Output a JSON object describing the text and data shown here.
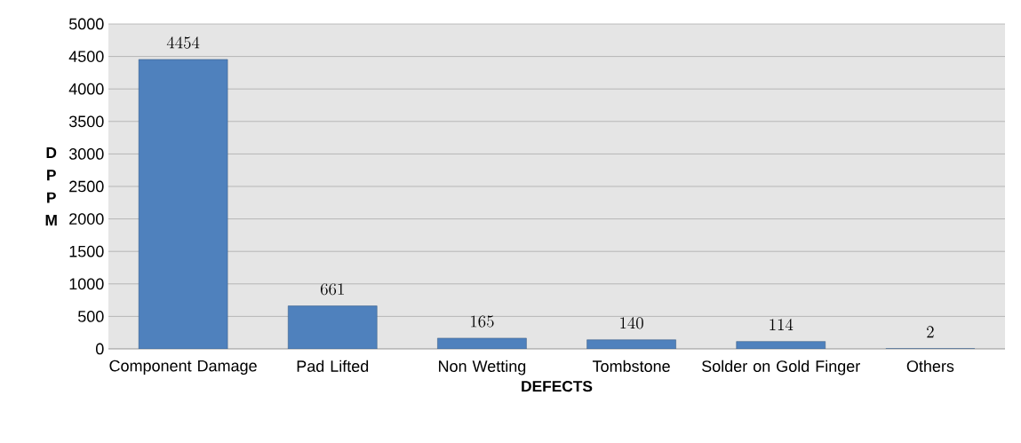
{
  "chart_data": {
    "type": "bar",
    "xlabel": "DEFECTS",
    "ylabel": "D P P M",
    "categories": [
      "Component Damage",
      "Pad Lifted",
      "Non Wetting",
      "Tombstone",
      "Solder on Gold Finger",
      "Others"
    ],
    "values": [
      4454,
      661,
      165,
      140,
      114,
      2
    ],
    "color": "#4f81bd",
    "ylim": [
      0,
      5000
    ],
    "yticks": [
      0,
      500,
      1000,
      1500,
      2000,
      2500,
      3000,
      3500,
      4000,
      4500,
      5000
    ],
    "grid": "y",
    "data_labels": true
  }
}
